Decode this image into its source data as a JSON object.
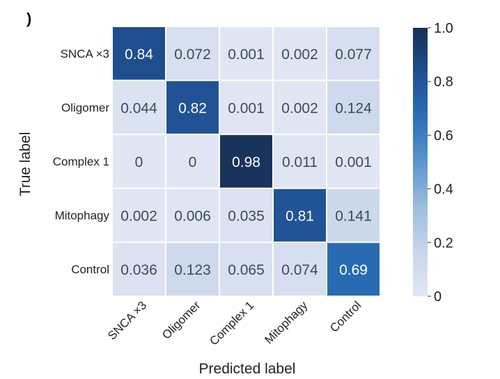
{
  "panel_label": ")",
  "chart_data": {
    "type": "heatmap",
    "title": "",
    "xlabel": "Predicted label",
    "ylabel": "True label",
    "x_categories": [
      "SNCA ×3",
      "Oligomer",
      "Complex 1",
      "Mitophagy",
      "Control"
    ],
    "y_categories": [
      "SNCA ×3",
      "Oligomer",
      "Complex 1",
      "Mitophagy",
      "Control"
    ],
    "values": [
      [
        0.84,
        0.072,
        0.001,
        0.002,
        0.077
      ],
      [
        0.044,
        0.82,
        0.001,
        0.002,
        0.124
      ],
      [
        0,
        0,
        0.98,
        0.011,
        0.001
      ],
      [
        0.002,
        0.006,
        0.035,
        0.81,
        0.141
      ],
      [
        0.036,
        0.123,
        0.065,
        0.074,
        0.69
      ]
    ],
    "cell_labels": [
      [
        "0.84",
        "0.072",
        "0.001",
        "0.002",
        "0.077"
      ],
      [
        "0.044",
        "0.82",
        "0.001",
        "0.002",
        "0.124"
      ],
      [
        "0",
        "0",
        "0.98",
        "0.011",
        "0.001"
      ],
      [
        "0.002",
        "0.006",
        "0.035",
        "0.81",
        "0.141"
      ],
      [
        "0.036",
        "0.123",
        "0.065",
        "0.074",
        "0.69"
      ]
    ],
    "colorbar": {
      "range": [
        0,
        1.0
      ],
      "ticks": [
        0,
        0.2,
        0.4,
        0.6,
        0.8,
        1.0
      ],
      "tick_labels": [
        "0",
        "0.2",
        "0.4",
        "0.6",
        "0.8",
        "1.0"
      ]
    },
    "colormap": [
      "#e1e6f4",
      "#c9d5ea",
      "#9dbddb",
      "#5b95cc",
      "#2a6fb6",
      "#1f4f92",
      "#182f54"
    ],
    "grid": false
  }
}
